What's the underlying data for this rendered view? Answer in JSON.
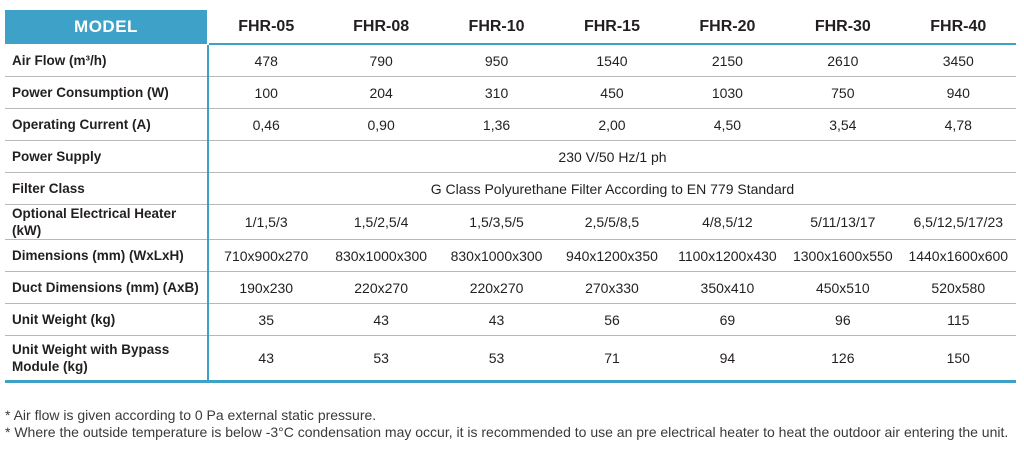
{
  "table": {
    "header_label": "MODEL",
    "models": [
      "FHR-05",
      "FHR-08",
      "FHR-10",
      "FHR-15",
      "FHR-20",
      "FHR-30",
      "FHR-40"
    ],
    "rows": [
      {
        "label": "Air Flow (m³/h)",
        "values": [
          "478",
          "790",
          "950",
          "1540",
          "2150",
          "2610",
          "3450"
        ]
      },
      {
        "label": "Power Consumption (W)",
        "values": [
          "100",
          "204",
          "310",
          "450",
          "1030",
          "750",
          "940"
        ]
      },
      {
        "label": "Operating Current (A)",
        "values": [
          "0,46",
          "0,90",
          "1,36",
          "2,00",
          "4,50",
          "3,54",
          "4,78"
        ]
      },
      {
        "label": "Power Supply",
        "merged": "230 V/50 Hz/1 ph"
      },
      {
        "label": "Filter Class",
        "merged": "G Class Polyurethane Filter According to EN 779 Standard"
      },
      {
        "label": "Optional Electrical Heater (kW)",
        "values": [
          "1/1,5/3",
          "1,5/2,5/4",
          "1,5/3,5/5",
          "2,5/5/8,5",
          "4/8,5/12",
          "5/11/13/17",
          "6,5/12,5/17/23"
        ]
      },
      {
        "label": "Dimensions (mm) (WxLxH)",
        "values": [
          "710x900x270",
          "830x1000x300",
          "830x1000x300",
          "940x1200x350",
          "1100x1200x430",
          "1300x1600x550",
          "1440x1600x600"
        ]
      },
      {
        "label": "Duct Dimensions (mm) (AxB)",
        "values": [
          "190x230",
          "220x270",
          "220x270",
          "270x330",
          "350x410",
          "450x510",
          "520x580"
        ]
      },
      {
        "label": "Unit Weight (kg)",
        "values": [
          "35",
          "43",
          "43",
          "56",
          "69",
          "96",
          "115"
        ]
      },
      {
        "label": "Unit Weight with Bypass Module (kg)",
        "values": [
          "43",
          "53",
          "53",
          "71",
          "94",
          "126",
          "150"
        ]
      }
    ]
  },
  "notes": [
    "* Air flow is given according to 0 Pa external static pressure.",
    "* Where the outside temperature is below -3°C condensation may occur, it is recommended to use an pre electrical heater to heat the outdoor air entering the unit."
  ],
  "colors": {
    "accent": "#3ea2c8",
    "text": "#231f20",
    "grid": "#b8b8b8"
  }
}
